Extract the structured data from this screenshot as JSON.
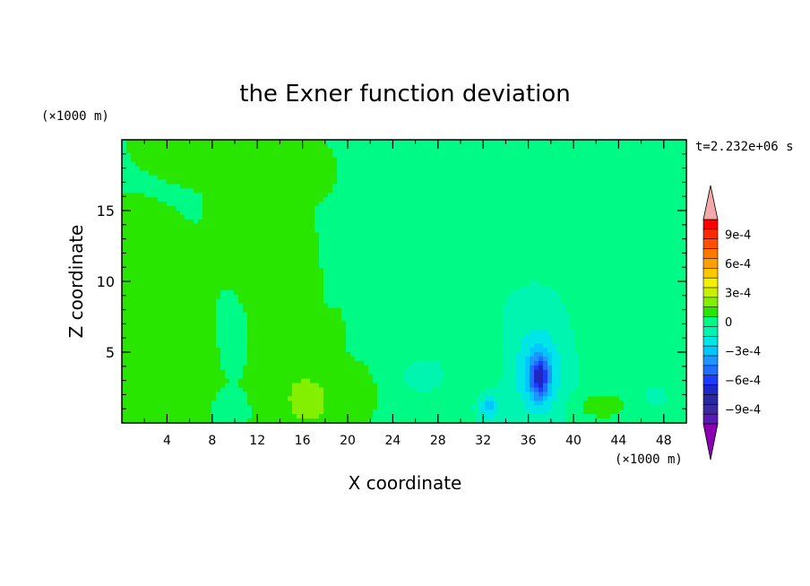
{
  "chart_data": {
    "type": "heatmap",
    "title": "the Exner function deviation",
    "xlabel": "X coordinate",
    "ylabel": "Z coordinate",
    "x_unit": "(×1000 m)",
    "y_unit": "(×1000 m)",
    "time_label": "t=2.232e+06 s",
    "xlim": [
      0,
      50
    ],
    "ylim": [
      0,
      20
    ],
    "x_ticks": [
      4,
      8,
      12,
      16,
      20,
      24,
      28,
      32,
      36,
      40,
      44,
      48
    ],
    "y_ticks": [
      5,
      10,
      15
    ],
    "grid": false,
    "colorbar": {
      "placement": "right",
      "levels": [
        -0.0011,
        -0.001,
        -0.0009,
        -0.0008,
        -0.0007,
        -0.0006,
        -0.0005,
        -0.0004,
        -0.0003,
        -0.0002,
        -0.0001,
        0,
        0.0001,
        0.0002,
        0.0003,
        0.0004,
        0.0005,
        0.0006,
        0.0007,
        0.0008,
        0.0009,
        0.001,
        0.0011
      ],
      "colors": [
        "#8c00b4",
        "#5a1ab4",
        "#3c28a0",
        "#2828a0",
        "#1e28c8",
        "#1e3cff",
        "#1e6eff",
        "#1e96ff",
        "#00c8ff",
        "#00e6e6",
        "#00f5b0",
        "#00fa86",
        "#28e600",
        "#82f000",
        "#c8f000",
        "#f0f000",
        "#ffc800",
        "#ffa000",
        "#ff7800",
        "#ff5000",
        "#ff2800",
        "#ff0000",
        "#f5aaaa"
      ],
      "tick_labels": [
        "9e-4",
        "6e-4",
        "3e-4",
        "0",
        "−3e-4",
        "−6e-4",
        "−9e-4"
      ],
      "tick_values": [
        0.0009,
        0.0006,
        0.0003,
        0,
        -0.0003,
        -0.0006,
        -0.0009
      ]
    },
    "features": [
      {
        "x": 0,
        "z": 20,
        "value": 5e-05,
        "sx": 12,
        "sz": 7
      },
      {
        "x": 6,
        "z": 20,
        "value": 5e-05,
        "sx": 11,
        "sz": 8
      },
      {
        "x": 14,
        "z": 17,
        "value": 5e-05,
        "sx": 8,
        "sz": 5
      },
      {
        "x": 17,
        "z": 18,
        "value": 5e-05,
        "sx": 5,
        "sz": 4
      },
      {
        "x": 46,
        "z": 16,
        "value": 5e-05,
        "sx": 4,
        "sz": 6
      },
      {
        "x": 49,
        "z": 12,
        "value": 5e-05,
        "sx": 3,
        "sz": 8
      },
      {
        "x": 44,
        "z": 6,
        "value": 5e-05,
        "sx": 3.5,
        "sz": 3
      },
      {
        "x": 22,
        "z": 5.5,
        "value": 5e-05,
        "sx": 4,
        "sz": 2.5
      },
      {
        "x": 32,
        "z": 4,
        "value": 5e-05,
        "sx": 2.5,
        "sz": 3
      },
      {
        "x": 3,
        "z": 4,
        "value": 8e-05,
        "sx": 3,
        "sz": 2.5
      },
      {
        "x": 3.5,
        "z": 4.5,
        "value": 0.00012,
        "sx": 1.8,
        "sz": 2
      },
      {
        "x": 14,
        "z": 10,
        "value": 0.00012,
        "sx": 1.8,
        "sz": 2.6
      },
      {
        "x": 15,
        "z": 5,
        "value": 0.0001,
        "sx": 2.2,
        "sz": 3
      },
      {
        "x": 16.5,
        "z": 1.5,
        "value": 0.00022,
        "sx": 2,
        "sz": 1.7
      },
      {
        "x": 21,
        "z": 2,
        "value": 0.00015,
        "sx": 1.2,
        "sz": 1.2
      },
      {
        "x": 42.5,
        "z": 1.2,
        "value": 0.00016,
        "sx": 2.5,
        "sz": 1
      },
      {
        "x": 36.5,
        "z": 4,
        "value": -0.0001,
        "sx": 3,
        "sz": 3.8
      },
      {
        "x": 37,
        "z": 3.5,
        "value": -0.00018,
        "sx": 1.8,
        "sz": 2.8
      },
      {
        "x": 37,
        "z": 3.2,
        "value": -0.00045,
        "sx": 0.8,
        "sz": 1.4
      },
      {
        "x": 32.5,
        "z": 1.2,
        "value": -0.00025,
        "sx": 0.9,
        "sz": 0.9
      },
      {
        "x": 26,
        "z": 3.5,
        "value": -5e-05,
        "sx": 2.5,
        "sz": 1.2
      },
      {
        "x": 10,
        "z": 6,
        "value": -3e-05,
        "sx": 0.8,
        "sz": 1.5
      },
      {
        "x": 9.7,
        "z": 1,
        "value": -7e-05,
        "sx": 0.8,
        "sz": 0.7
      },
      {
        "x": 47,
        "z": 2,
        "value": -3e-05,
        "sx": 2.2,
        "sz": 1.5
      }
    ],
    "background_left": 5e-05,
    "background_right": -4e-05,
    "boundary_x": 21
  }
}
